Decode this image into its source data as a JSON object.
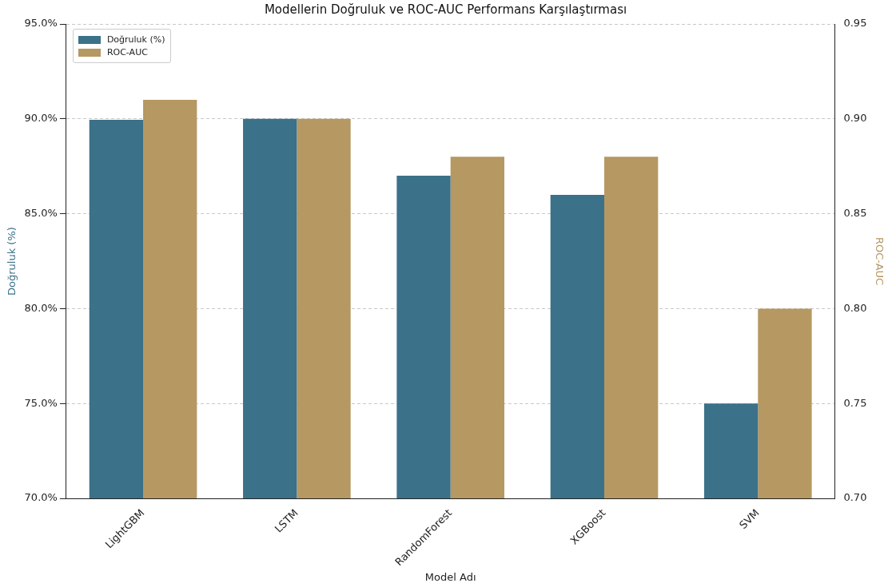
{
  "chart_data": {
    "type": "bar",
    "title": "Modellerin Doğruluk ve ROC-AUC Performans Karşılaştırması",
    "xlabel": "Model Adı",
    "ylabel": "Doğruluk (%)",
    "y2label": "ROC-AUC",
    "categories": [
      "LightGBM",
      "LSTM",
      "RandomForest",
      "XGBoost",
      "SVM"
    ],
    "series": [
      {
        "name": "Doğruluk (%)",
        "color": "#3b7189",
        "values": [
          89.95,
          90,
          87,
          86,
          75
        ]
      },
      {
        "name": "ROC-AUC",
        "color": "#b59862",
        "values": [
          0.91,
          0.9,
          0.88,
          0.88,
          0.8
        ],
        "axis": "y2"
      }
    ],
    "ylim": [
      70,
      95
    ],
    "yticks": [
      {
        "value": 70,
        "label": "70.0%"
      },
      {
        "value": 75,
        "label": "75.0%"
      },
      {
        "value": 80,
        "label": "80.0%"
      },
      {
        "value": 85,
        "label": "85.0%"
      },
      {
        "value": 90,
        "label": "90.0%"
      },
      {
        "value": 95,
        "label": "95.0%"
      }
    ],
    "y2lim": [
      0.7,
      0.95
    ],
    "y2ticks": [
      {
        "value": 0.7,
        "label": "0.70"
      },
      {
        "value": 0.75,
        "label": "0.75"
      },
      {
        "value": 0.8,
        "label": "0.80"
      },
      {
        "value": 0.85,
        "label": "0.85"
      },
      {
        "value": 0.9,
        "label": "0.90"
      },
      {
        "value": 0.95,
        "label": "0.95"
      }
    ],
    "grid": "y",
    "legend": "top left"
  }
}
